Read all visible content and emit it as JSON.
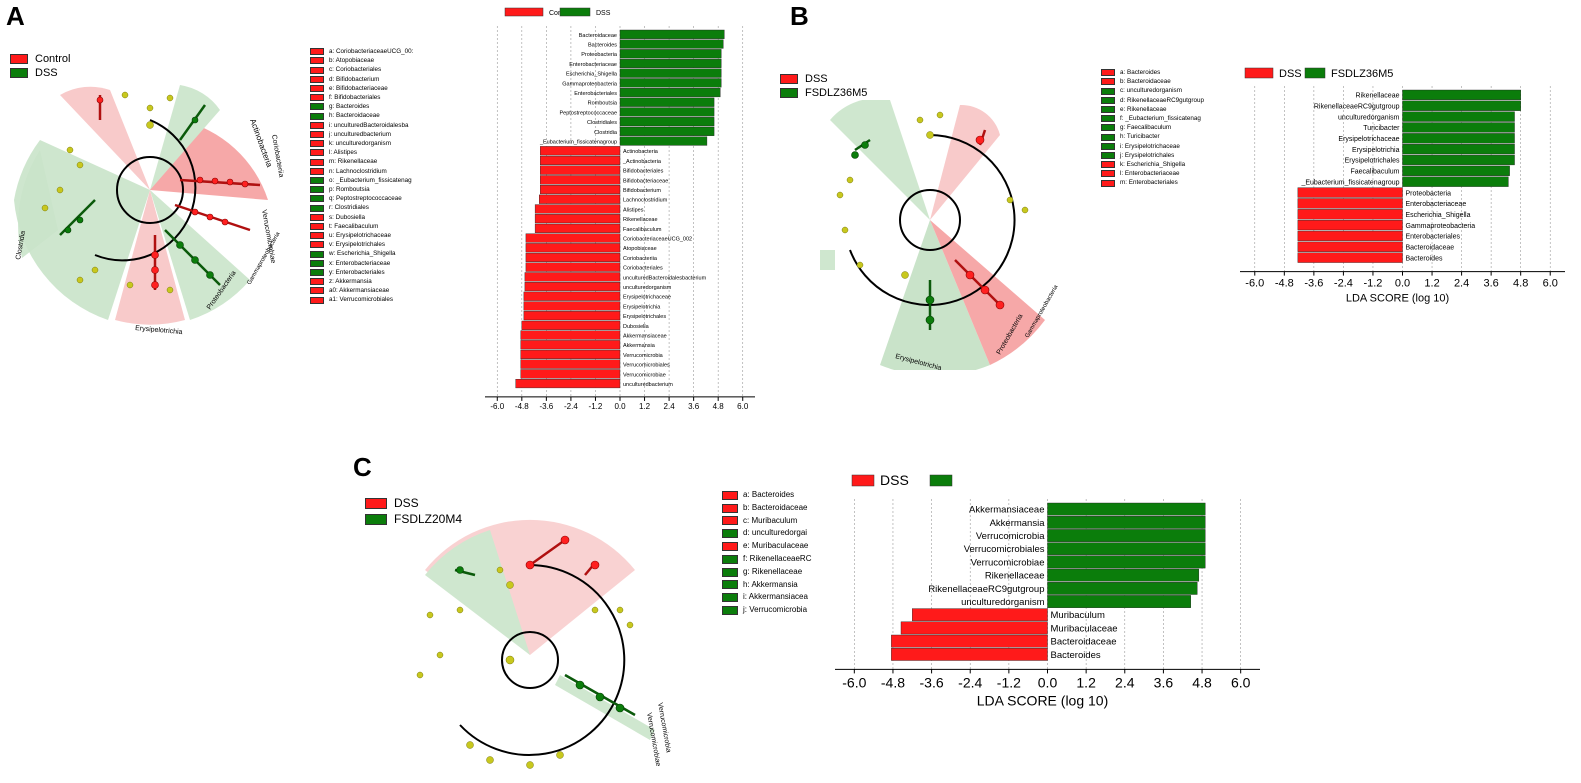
{
  "colors": {
    "red": "#ff1a1a",
    "green": "#0b7d0b",
    "node_yellow": "#c8c81e",
    "green_bg": "#cfe7cf",
    "red_bg": "#f8cccc"
  },
  "panels": {
    "A": {
      "letter": "A",
      "group_legend": [
        {
          "label": "Control",
          "color": "red"
        },
        {
          "label": "DSS",
          "color": "green"
        }
      ],
      "taxa_legend": [
        {
          "label": "a: CoriobacteriaceaeUCG_00:",
          "color": "red"
        },
        {
          "label": "b: Atopobiaceae",
          "color": "red"
        },
        {
          "label": "c: Coriobacteriales",
          "color": "red"
        },
        {
          "label": "d: Bifidobacterium",
          "color": "red"
        },
        {
          "label": "e: Bifidobacteriaceae",
          "color": "red"
        },
        {
          "label": "f: Bifidobacteriales",
          "color": "red"
        },
        {
          "label": "g: Bacteroides",
          "color": "green"
        },
        {
          "label": "h: Bacteroidaceae",
          "color": "green"
        },
        {
          "label": "i: unculturedBacteroidalesba",
          "color": "red"
        },
        {
          "label": "j: unculturedbacterium",
          "color": "red"
        },
        {
          "label": "k: unculturedorganism",
          "color": "red"
        },
        {
          "label": "l: Alistipes",
          "color": "red"
        },
        {
          "label": "m: Rikenellaceae",
          "color": "red"
        },
        {
          "label": "n: Lachnoclostridium",
          "color": "red"
        },
        {
          "label": "o: _Eubacterium_fissicatenag",
          "color": "green"
        },
        {
          "label": "p: Romboutsia",
          "color": "green"
        },
        {
          "label": "q: Peptostreptococcaceae",
          "color": "green"
        },
        {
          "label": "r: Clostridiales",
          "color": "green"
        },
        {
          "label": "s: Dubosiella",
          "color": "red"
        },
        {
          "label": "t: Faecalibaculum",
          "color": "red"
        },
        {
          "label": "u: Erysipelotrichaceae",
          "color": "red"
        },
        {
          "label": "v: Erysipelotrichales",
          "color": "red"
        },
        {
          "label": "w: Escherichia_Shigella",
          "color": "green"
        },
        {
          "label": "x: Enterobacteriaceae",
          "color": "green"
        },
        {
          "label": "y: Enterobacteriales",
          "color": "green"
        },
        {
          "label": "z: Akkermansia",
          "color": "red"
        },
        {
          "label": "a0: Akkermansiaceae",
          "color": "red"
        },
        {
          "label": "a1: Verrucomicrobiales",
          "color": "red"
        }
      ],
      "clade_labels": [
        "Actinobacteria",
        "Coriobacteriia",
        "Clostridia",
        "Erysipelotrichia",
        "Proteobacteria",
        "Verrucomicrobiae",
        "Gammaproteobacteria"
      ]
    },
    "B": {
      "letter": "B",
      "group_legend": [
        {
          "label": "DSS",
          "color": "red"
        },
        {
          "label": "FSDLZ36M5",
          "color": "green"
        }
      ],
      "taxa_legend": [
        {
          "label": "a: Bacteroides",
          "color": "red"
        },
        {
          "label": "b: Bacteroidaceae",
          "color": "red"
        },
        {
          "label": "c: unculturedorganism",
          "color": "green"
        },
        {
          "label": "d: RikenellaceaeRC9gutgroup",
          "color": "green"
        },
        {
          "label": "e: Rikenellaceae",
          "color": "green"
        },
        {
          "label": "f: _Eubacterium_fissicatenag",
          "color": "green"
        },
        {
          "label": "g: Faecalibaculum",
          "color": "green"
        },
        {
          "label": "h: Turicibacter",
          "color": "green"
        },
        {
          "label": "i: Erysipelotrichaceae",
          "color": "green"
        },
        {
          "label": "j: Erysipelotrichales",
          "color": "green"
        },
        {
          "label": "k: Escherichia_Shigella",
          "color": "red"
        },
        {
          "label": "l: Enterobacteriaceae",
          "color": "red"
        },
        {
          "label": "m: Enterobacteriales",
          "color": "red"
        }
      ],
      "clade_labels": [
        "Erysipelotrichia",
        "Proteobacteria",
        "Gammaproteobacteria"
      ]
    },
    "C": {
      "letter": "C",
      "group_legend": [
        {
          "label": "DSS",
          "color": "red"
        },
        {
          "label": "FSDLZ20M4",
          "color": "green"
        }
      ],
      "taxa_legend": [
        {
          "label": "a: Bacteroides",
          "color": "red"
        },
        {
          "label": "b: Bacteroidaceae",
          "color": "red"
        },
        {
          "label": "c: Muribaculum",
          "color": "red"
        },
        {
          "label": "d: unculturedorgai",
          "color": "green"
        },
        {
          "label": "e: Muribaculaceae",
          "color": "red"
        },
        {
          "label": "f: RikenellaceaeRC",
          "color": "green"
        },
        {
          "label": "g: Rikenellaceae",
          "color": "green"
        },
        {
          "label": "h: Akkermansia",
          "color": "green"
        },
        {
          "label": "i: Akkermansiacea",
          "color": "green"
        },
        {
          "label": "j: Verrucomicrobia",
          "color": "green"
        }
      ],
      "clade_labels": [
        "Verrucomicrobia",
        "Verrucomicrobiae"
      ]
    }
  },
  "chart_data": [
    {
      "type": "bar",
      "panel": "A",
      "orientation": "horizontal",
      "legend": [
        {
          "label": "Control",
          "color": "red"
        },
        {
          "label": "DSS",
          "color": "green"
        }
      ],
      "categories": [
        "Bacteroidaceae",
        "Bacteroides",
        "Proteobacteria",
        "Enterobacteriaceae",
        "Escherichia_Shigella",
        "Gammaproteobacteria",
        "Enterobacteriales",
        "Romboutsia",
        "Peptostreptococcaceae",
        "Clostridiales",
        "Clostridia",
        "_Eubacterium_fissicatenagroup",
        "Actinobacteria",
        "_Actinobacteria",
        "Bifidobacteriales",
        "Bifidobacteriaceae",
        "Bifidobacterium",
        "Lachnoclostridium",
        "Alistipes",
        "Rikenellaceae",
        "Faecalibaculum",
        "CoriobacteriaceaeUCG_002",
        "Atopobiaceae",
        "Coriobacteriia",
        "Coriobacteriales",
        "unculturedBacteroidalesbacterium",
        "unculturedorganism",
        "Erysipelotrichaceae",
        "Erysipelotrichia",
        "Erysipelotrichales",
        "Dubosiella",
        "Akkermansiaceae",
        "Akkermansia",
        "Verrucomicrobia",
        "Verrucomicrobiales",
        "Verrucomicrobiae",
        "unculturedbacterium"
      ],
      "values": [
        5.1,
        5.05,
        4.95,
        4.95,
        4.95,
        4.95,
        4.9,
        4.6,
        4.6,
        4.6,
        4.6,
        4.25,
        -3.9,
        -3.9,
        -3.9,
        -3.9,
        -3.9,
        -3.95,
        -4.15,
        -4.15,
        -4.15,
        -4.6,
        -4.6,
        -4.6,
        -4.6,
        -4.65,
        -4.65,
        -4.7,
        -4.7,
        -4.7,
        -4.8,
        -4.85,
        -4.85,
        -4.85,
        -4.85,
        -4.85,
        -5.1
      ],
      "xlabel": "LDA SCORE (log 10)",
      "xticks": [
        -6.0,
        -4.8,
        -3.6,
        -2.4,
        -1.2,
        0.0,
        1.2,
        2.4,
        3.6,
        4.8,
        6.0
      ],
      "xlim": [
        -6.6,
        6.6
      ]
    },
    {
      "type": "bar",
      "panel": "B",
      "orientation": "horizontal",
      "legend": [
        {
          "label": "DSS",
          "color": "red"
        },
        {
          "label": "FSDLZ36M5",
          "color": "green"
        }
      ],
      "categories": [
        "Rikenellaceae",
        "RikenellaceaeRC9gutgroup",
        "unculturedorganism",
        "Turicibacter",
        "Erysipelotrichaceae",
        "Erysipelotrichia",
        "Erysipelotrichales",
        "Faecalibaculum",
        "_Eubacterium_fissicatenagroup",
        "Proteobacteria",
        "Enterobacteriaceae",
        "Escherichia_Shigella",
        "Gammaproteobacteria",
        "Enterobacteriales",
        "Bacteroidaceae",
        "Bacteroides"
      ],
      "values": [
        4.8,
        4.8,
        4.55,
        4.55,
        4.55,
        4.55,
        4.55,
        4.35,
        4.3,
        -4.25,
        -4.25,
        -4.25,
        -4.25,
        -4.25,
        -4.25,
        -4.25
      ],
      "xlabel": "LDA SCORE (log 10)",
      "xticks": [
        -6.0,
        -4.8,
        -3.6,
        -2.4,
        -1.2,
        0.0,
        1.2,
        2.4,
        3.6,
        4.8,
        6.0
      ],
      "xlim": [
        -6.6,
        6.6
      ]
    },
    {
      "type": "bar",
      "panel": "C",
      "orientation": "horizontal",
      "legend": [
        {
          "label": "DSS",
          "color": "red"
        },
        {
          "label": "",
          "color": "green"
        }
      ],
      "categories": [
        "Akkermansiaceae",
        "Akkermansia",
        "Verrucomicrobia",
        "Verrucomicrobiales",
        "Verrucomicrobiae",
        "Rikenellaceae",
        "RikenellaceaeRC9gutgroup",
        "unculturedorganism",
        "Muribaculum",
        "Muribaculaceae",
        "Bacteroidaceae",
        "Bacteroides"
      ],
      "values": [
        4.9,
        4.9,
        4.9,
        4.9,
        4.9,
        4.7,
        4.65,
        4.45,
        -4.2,
        -4.55,
        -4.85,
        -4.85
      ],
      "xlabel": "LDA SCORE (log 10)",
      "xticks": [
        -6.0,
        -4.8,
        -3.6,
        -2.4,
        -1.2,
        0.0,
        1.2,
        2.4,
        3.6,
        4.8,
        6.0
      ],
      "xlim": [
        -6.6,
        6.6
      ]
    }
  ]
}
